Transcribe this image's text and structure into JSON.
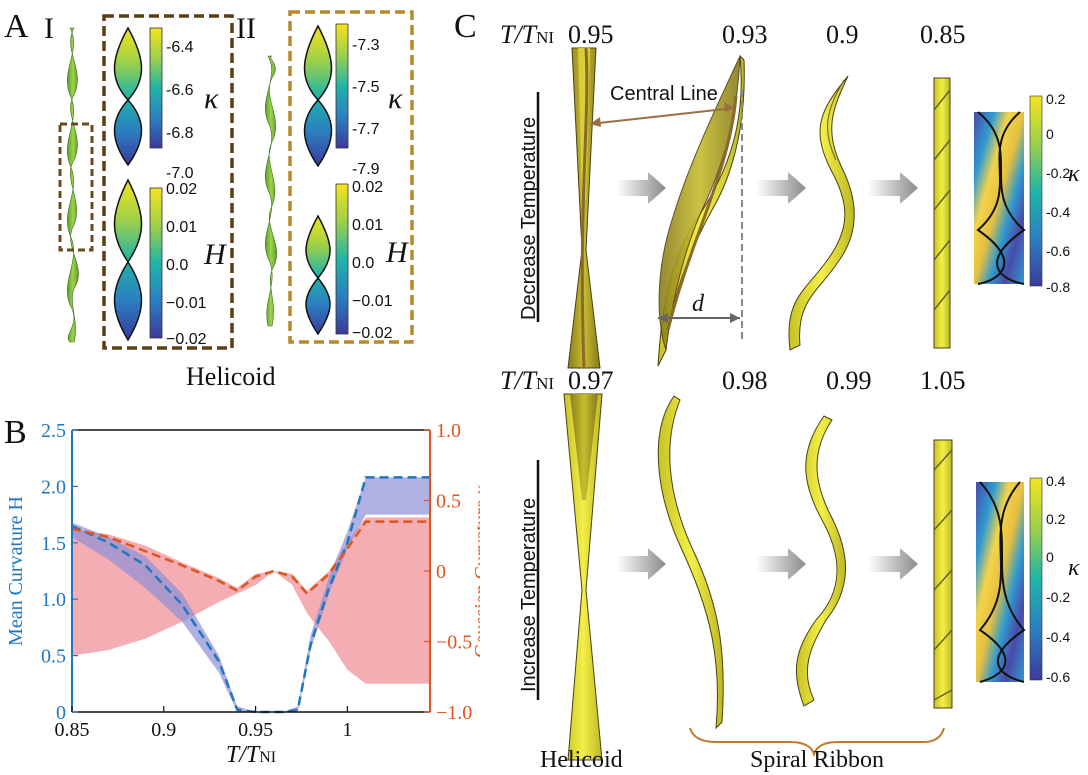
{
  "figure": {
    "panel_a": {
      "letter": "A",
      "sub1": "I",
      "sub2": "II",
      "caption": "Helicoid",
      "colorbar_I_kappa": {
        "ticks": [
          "-6.4",
          "-6.6",
          "-6.8",
          "-7.0"
        ],
        "symbol": "κ"
      },
      "colorbar_I_H": {
        "ticks": [
          "0.02",
          "0.01",
          "0.0",
          "−0.01",
          "−0.02"
        ],
        "symbol": "H"
      },
      "colorbar_II_kappa": {
        "ticks": [
          "-7.3",
          "-7.5",
          "-7.7",
          "-7.9"
        ],
        "symbol": "κ"
      },
      "colorbar_II_H": {
        "ticks": [
          "0.02",
          "0.01",
          "0.0",
          "−0.01",
          "−0.02"
        ],
        "symbol": "H"
      }
    },
    "panel_b": {
      "letter": "B"
    },
    "panel_c": {
      "letter": "C",
      "ratio_main": "T/T",
      "ratio_sub": "NI",
      "top_values": [
        "0.95",
        "0.93",
        "0.9",
        "0.85"
      ],
      "bottom_values": [
        "0.97",
        "0.98",
        "0.99",
        "1.05"
      ],
      "central_line": "Central Line",
      "d_label": "d",
      "decrease_label": "Decrease Temperature",
      "increase_label": "Increase Temperature",
      "helicoid_label": "Helicoid",
      "spiral_label": "Spiral Ribbon",
      "colorbar_top": {
        "ticks": [
          "0.2",
          "0",
          "-0.2",
          "-0.4",
          "-0.6",
          "-0.8"
        ],
        "symbol": "κ"
      },
      "colorbar_bottom": {
        "ticks": [
          "0.4",
          "0.2",
          "0",
          "-0.2",
          "-0.4",
          "-0.6"
        ],
        "symbol": "κ"
      }
    }
  },
  "chart_data": {
    "type": "line",
    "xlabel": "T/TNI",
    "ylabel_left": "Mean Curvature H",
    "ylabel_right": "Gaussian Curvature κ",
    "xlim": [
      0.85,
      1.045
    ],
    "ylim_left": [
      0,
      2.5
    ],
    "ylim_right": [
      -1.0,
      1.0
    ],
    "x_ticks": [
      "0.85",
      "0.9",
      "0.95",
      "1"
    ],
    "y_ticks_left": [
      "0",
      "0.5",
      "1.0",
      "1.5",
      "2.0",
      "2.5"
    ],
    "y_ticks_right": [
      "−1.0",
      "−0.5",
      "0",
      "0.5",
      "1.0"
    ],
    "colors": {
      "mean": "#1f77c0",
      "gauss": "#e0541e",
      "mean_band": "#8f8fd6",
      "gauss_band": "#f08a92"
    },
    "series": [
      {
        "name": "Mean Curvature H",
        "axis": "left",
        "x": [
          0.85,
          0.87,
          0.89,
          0.91,
          0.93,
          0.94,
          0.95,
          0.96,
          0.965,
          0.973,
          0.98,
          0.99,
          1.0,
          1.01,
          1.045
        ],
        "y": [
          1.65,
          1.5,
          1.3,
          0.95,
          0.45,
          0.02,
          0,
          0,
          0,
          0.02,
          0.6,
          1.1,
          1.5,
          2.08,
          2.08
        ],
        "band_low": [
          1.55,
          1.35,
          1.1,
          0.8,
          0.35,
          0.0,
          0,
          0,
          0,
          0.0,
          0.55,
          1.05,
          1.45,
          1.75,
          1.75
        ],
        "band_high": [
          1.68,
          1.55,
          1.38,
          1.05,
          0.5,
          0.05,
          0,
          0,
          0,
          0.05,
          0.68,
          1.2,
          1.6,
          2.08,
          2.08
        ]
      },
      {
        "name": "Gaussian Curvature κ",
        "axis": "right",
        "x": [
          0.85,
          0.87,
          0.89,
          0.91,
          0.93,
          0.94,
          0.95,
          0.96,
          0.97,
          0.978,
          0.99,
          1.0,
          1.01,
          1.045
        ],
        "y": [
          0.3,
          0.24,
          0.14,
          0.04,
          -0.07,
          -0.14,
          -0.04,
          0.0,
          -0.04,
          -0.16,
          -0.02,
          0.16,
          0.35,
          0.35
        ],
        "band_low": [
          -0.6,
          -0.56,
          -0.48,
          -0.36,
          -0.22,
          -0.16,
          -0.1,
          0,
          -0.1,
          -0.3,
          -0.5,
          -0.7,
          -0.8,
          -0.8
        ],
        "band_high": [
          0.3,
          0.26,
          0.18,
          0.06,
          -0.05,
          -0.12,
          -0.02,
          0,
          -0.02,
          -0.14,
          0.0,
          0.2,
          0.38,
          0.38
        ]
      }
    ]
  }
}
